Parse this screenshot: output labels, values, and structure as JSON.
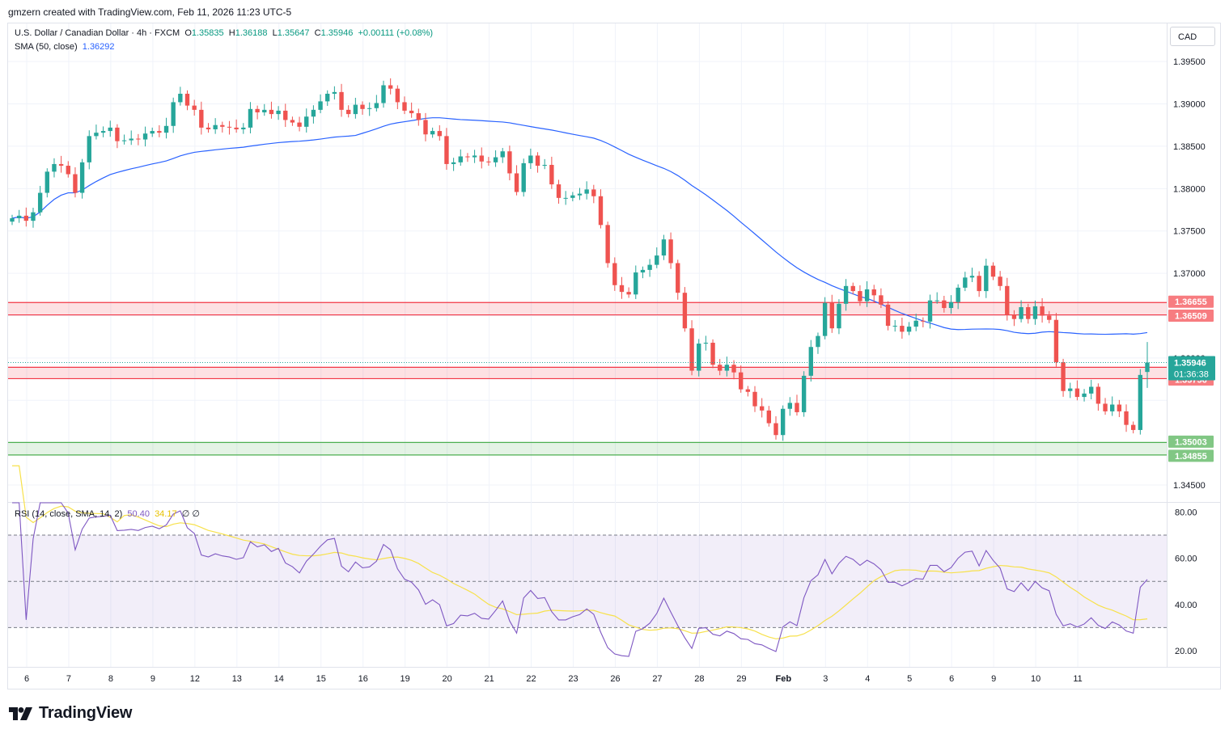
{
  "header": {
    "credit": "gmzern created with TradingView.com, Feb 11, 2026 11:23 UTC-5"
  },
  "legend": {
    "symbol": "U.S. Dollar / Canadian Dollar · 4h · FXCM",
    "open_label": "O",
    "open": "1.35835",
    "high_label": "H",
    "high": "1.36188",
    "low_label": "L",
    "low": "1.35647",
    "close_label": "C",
    "close": "1.35946",
    "change": "+0.00111 (+0.08%)",
    "sma_label": "SMA (50, close)",
    "sma_value": "1.36292",
    "rsi_label": "RSI (14, close, SMA, 14, 2)",
    "rsi_value": "50.40",
    "rsi_ma_value": "34.17",
    "rsi_extra": "∅ ∅"
  },
  "currency": "CAD",
  "brand": {
    "name": "TradingView",
    "logo_icon": "tradingview-logo-icon"
  },
  "colors": {
    "up": "#26a69a",
    "down": "#ef5350",
    "sma": "#2962ff",
    "rsi": "#7e57c2",
    "rsi_ma": "#f7e14b",
    "resistance": "#f23645",
    "support": "#4caf50"
  },
  "chart_data": {
    "type": "candlestick",
    "interval": "4h",
    "x_tick_labels": [
      "6",
      "7",
      "8",
      "9",
      "12",
      "13",
      "14",
      "15",
      "16",
      "19",
      "20",
      "21",
      "22",
      "23",
      "26",
      "27",
      "28",
      "29",
      "Feb",
      "3",
      "4",
      "5",
      "6",
      "9",
      "10",
      "11"
    ],
    "price_axis": {
      "ylim": [
        1.343,
        1.3995
      ],
      "ticks": [
        "1.39500",
        "1.39000",
        "1.38500",
        "1.38000",
        "1.37500",
        "1.37000",
        "1.36000",
        "1.34500"
      ]
    },
    "zones": [
      {
        "kind": "resistance",
        "upper": 1.36655,
        "lower": 1.36509,
        "upper_label": "1.36655",
        "lower_label": "1.36509"
      },
      {
        "kind": "resistance",
        "upper": 1.3589,
        "lower": 1.35756,
        "upper_label": "1.35890",
        "lower_label": "1.35756"
      },
      {
        "kind": "support",
        "upper": 1.35003,
        "lower": 1.34855,
        "upper_label": "1.35003",
        "lower_label": "1.34855"
      }
    ],
    "last_price": {
      "value": 1.35946,
      "label": "1.35946",
      "countdown": "01:36:38"
    },
    "closes": [
      1.3765,
      1.3768,
      1.3762,
      1.3772,
      1.3795,
      1.382,
      1.3829,
      1.3827,
      1.3817,
      1.3795,
      1.3831,
      1.3862,
      1.3866,
      1.3868,
      1.3872,
      1.3856,
      1.3857,
      1.3859,
      1.3858,
      1.3865,
      1.3868,
      1.3866,
      1.3874,
      1.3902,
      1.3912,
      1.3898,
      1.3893,
      1.3872,
      1.387,
      1.3875,
      1.3873,
      1.3872,
      1.387,
      1.3872,
      1.3894,
      1.389,
      1.3893,
      1.3888,
      1.3892,
      1.3881,
      1.3878,
      1.3873,
      1.3885,
      1.3893,
      1.3903,
      1.3912,
      1.3914,
      1.3893,
      1.3888,
      1.3899,
      1.3894,
      1.3895,
      1.3901,
      1.3922,
      1.3918,
      1.3902,
      1.3892,
      1.3889,
      1.3881,
      1.3864,
      1.3868,
      1.3862,
      1.3829,
      1.3831,
      1.3838,
      1.3837,
      1.3839,
      1.3832,
      1.3831,
      1.3837,
      1.3844,
      1.3818,
      1.3796,
      1.383,
      1.3839,
      1.3827,
      1.3828,
      1.3805,
      1.3789,
      1.3789,
      1.3792,
      1.3794,
      1.3799,
      1.3791,
      1.3757,
      1.3712,
      1.3686,
      1.3678,
      1.3675,
      1.3701,
      1.3704,
      1.371,
      1.3721,
      1.374,
      1.3712,
      1.3677,
      1.3635,
      1.3585,
      1.3617,
      1.3618,
      1.3592,
      1.3585,
      1.3592,
      1.3583,
      1.3563,
      1.356,
      1.3543,
      1.3538,
      1.3523,
      1.3509,
      1.354,
      1.3547,
      1.3536,
      1.3579,
      1.3613,
      1.3626,
      1.3665,
      1.3635,
      1.3664,
      1.3685,
      1.3679,
      1.3667,
      1.3681,
      1.3674,
      1.3663,
      1.3638,
      1.3638,
      1.3631,
      1.3637,
      1.3644,
      1.3643,
      1.3668,
      1.3668,
      1.3659,
      1.3666,
      1.3683,
      1.3695,
      1.3697,
      1.3679,
      1.3709,
      1.3696,
      1.3685,
      1.3651,
      1.3646,
      1.366,
      1.3646,
      1.3661,
      1.365,
      1.3645,
      1.3595,
      1.3561,
      1.3564,
      1.3554,
      1.3558,
      1.3566,
      1.3546,
      1.3537,
      1.3545,
      1.3537,
      1.3521,
      1.3515,
      1.358,
      1.3595
    ]
  }
}
